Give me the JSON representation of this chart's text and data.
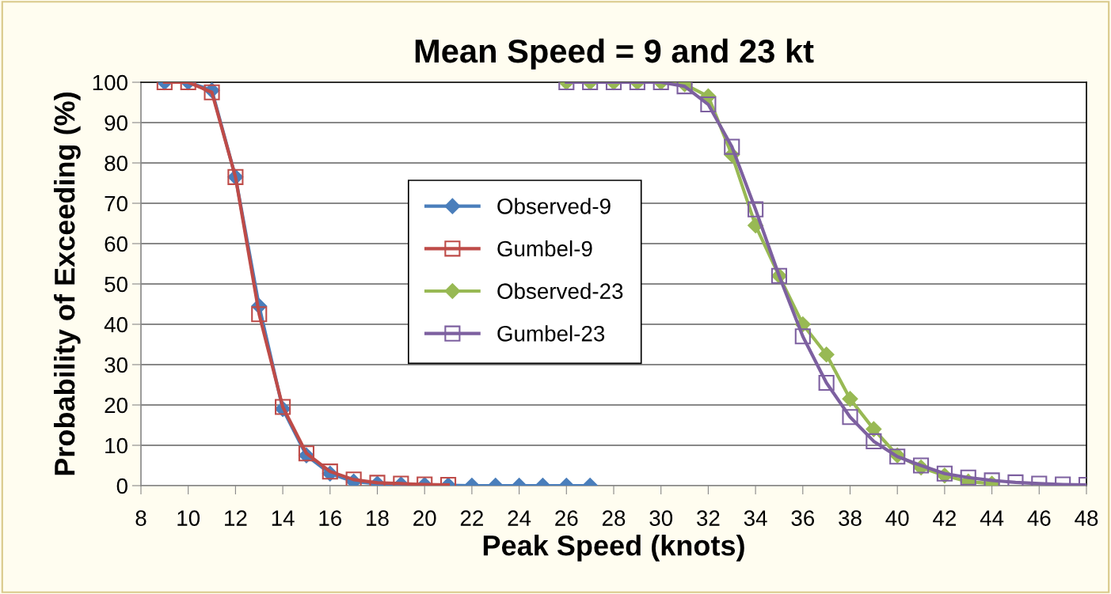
{
  "chart_data": {
    "type": "line",
    "title": "Mean Speed = 9 and 23 kt",
    "xlabel": "Peak Speed (knots)",
    "ylabel": "Probability of Exceeding (%)",
    "xlim": [
      8,
      48
    ],
    "xticks": [
      8,
      10,
      12,
      14,
      16,
      18,
      20,
      22,
      24,
      26,
      28,
      30,
      32,
      34,
      36,
      38,
      40,
      42,
      44,
      46,
      48
    ],
    "ylim": [
      0,
      100
    ],
    "yticks": [
      0,
      10,
      20,
      30,
      40,
      50,
      60,
      70,
      80,
      90,
      100
    ],
    "grid": "y",
    "legend": "center",
    "line_style": "solid",
    "series": [
      {
        "name": "Observed-9",
        "color": "#4a7ebb",
        "marker": "diamond",
        "x": [
          9,
          10,
          11,
          12,
          13,
          14,
          15,
          16,
          17,
          18,
          19,
          20,
          21,
          22,
          23,
          24,
          25,
          26,
          27
        ],
        "values": [
          100,
          100,
          98,
          76.5,
          44.5,
          19,
          7.5,
          3,
          1,
          0.5,
          0.3,
          0.2,
          0.1,
          0,
          0,
          0,
          0,
          0,
          0
        ]
      },
      {
        "name": "Gumbel-9",
        "color": "#be4b48",
        "marker": "square",
        "x": [
          9,
          10,
          11,
          12,
          13,
          14,
          15,
          16,
          17,
          18,
          19,
          20,
          21
        ],
        "values": [
          100,
          100,
          97.5,
          76.5,
          42.5,
          19.5,
          8,
          3.5,
          1.5,
          0.7,
          0.5,
          0.3,
          0.2
        ]
      },
      {
        "name": "Observed-23",
        "color": "#98b954",
        "marker": "diamond",
        "x": [
          26,
          27,
          28,
          29,
          30,
          31,
          32,
          33,
          34,
          35,
          36,
          37,
          38,
          39,
          40,
          41,
          42,
          43,
          44
        ],
        "values": [
          100,
          100,
          100,
          100,
          100,
          99.5,
          96.5,
          82,
          64.5,
          52,
          40,
          32.5,
          21.5,
          14,
          7.5,
          4.5,
          2.5,
          1,
          0.5
        ]
      },
      {
        "name": "Gumbel-23",
        "color": "#7d60a0",
        "marker": "square",
        "x": [
          26,
          27,
          28,
          29,
          30,
          31,
          32,
          33,
          34,
          35,
          36,
          37,
          38,
          39,
          40,
          41,
          42,
          43,
          44,
          45,
          46,
          47,
          48
        ],
        "values": [
          100,
          100,
          100,
          100,
          100,
          99,
          94.5,
          84,
          68.5,
          52,
          37,
          25.5,
          17,
          11,
          7.2,
          5,
          3,
          2,
          1.3,
          0.8,
          0.5,
          0.3,
          0.2
        ]
      }
    ]
  }
}
